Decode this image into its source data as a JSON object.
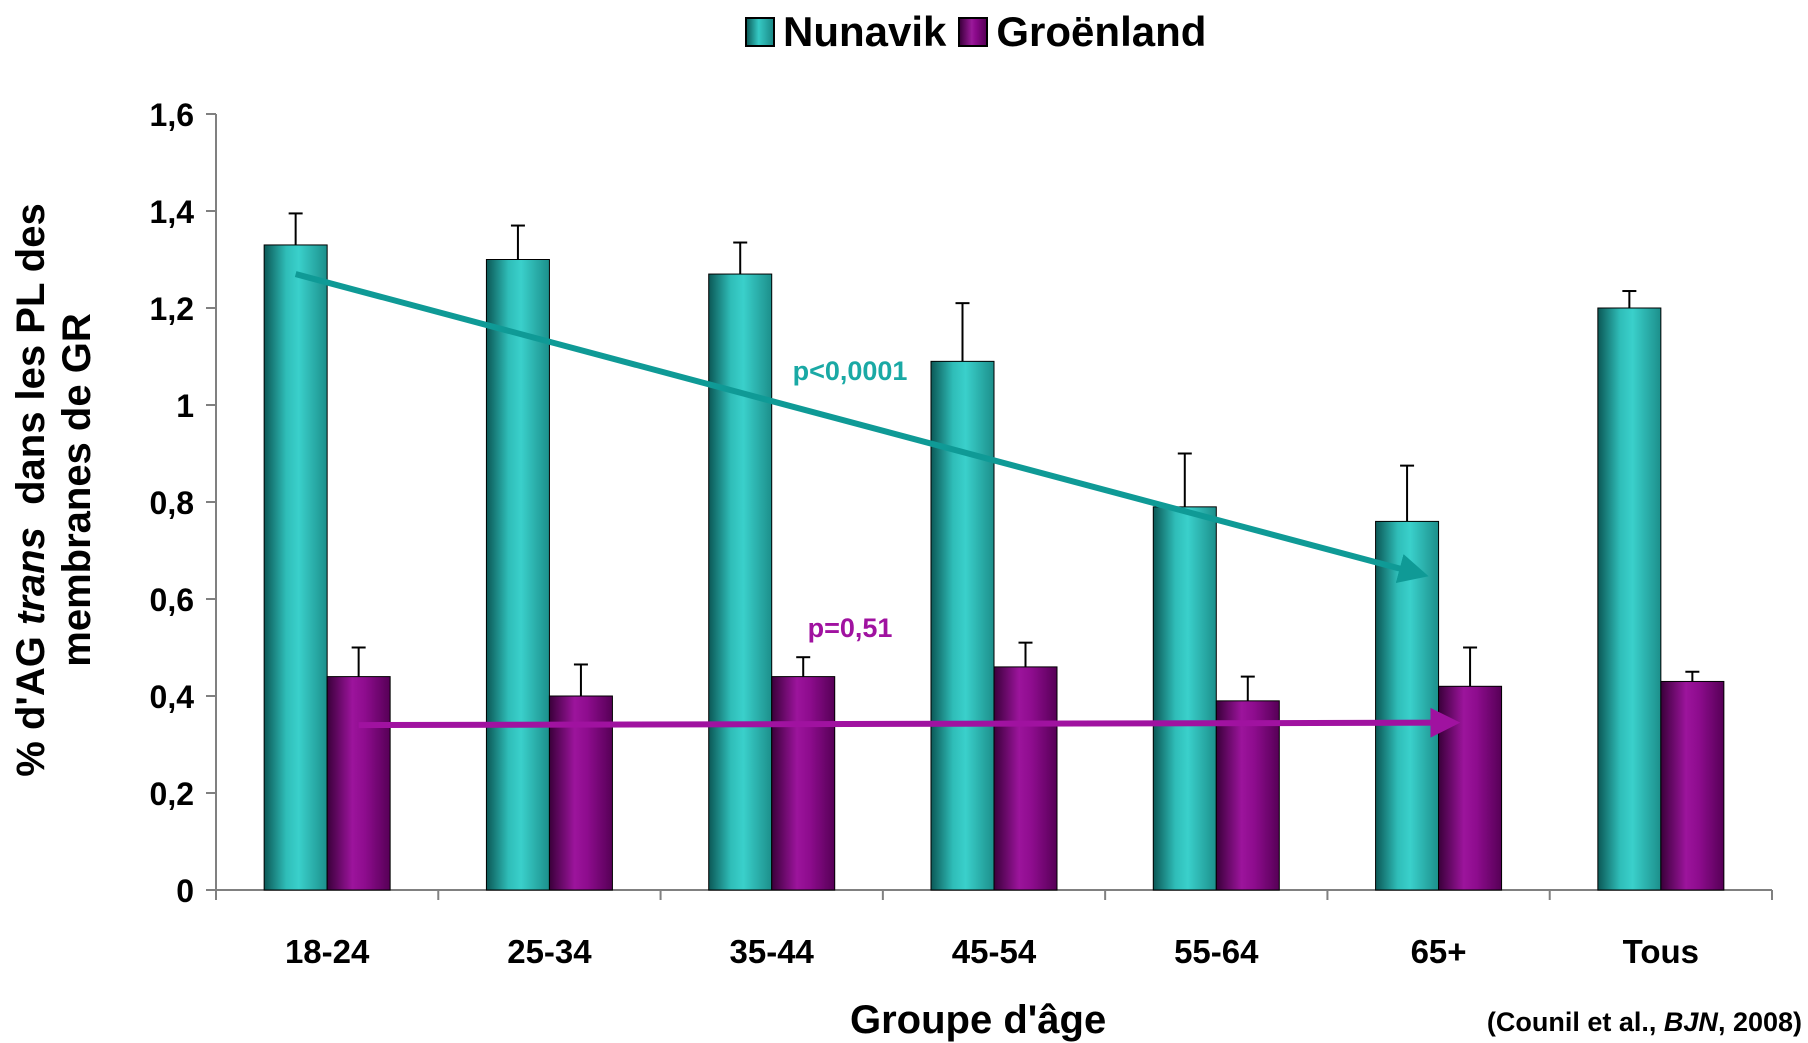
{
  "chart_data": {
    "type": "bar",
    "categories": [
      "18-24",
      "25-34",
      "35-44",
      "45-54",
      "55-64",
      "65+",
      "Tous"
    ],
    "series": [
      {
        "name": "Nunavik",
        "values": [
          1.33,
          1.3,
          1.27,
          1.09,
          0.79,
          0.76,
          1.2
        ],
        "error": [
          0.065,
          0.07,
          0.065,
          0.12,
          0.11,
          0.115,
          0.035
        ],
        "color": "#2fb8b4"
      },
      {
        "name": "Groënland",
        "values": [
          0.44,
          0.4,
          0.44,
          0.46,
          0.39,
          0.42,
          0.43
        ],
        "error": [
          0.06,
          0.065,
          0.04,
          0.05,
          0.05,
          0.08,
          0.02
        ],
        "color": "#8b0a8b"
      }
    ],
    "ylim": [
      0,
      1.6
    ],
    "yticks": [
      "0",
      "0,2",
      "0,4",
      "0,6",
      "0,8",
      "1",
      "1,2",
      "1,4",
      "1,6"
    ],
    "ylabel_line1_pre": "% d'AG ",
    "ylabel_italic": "trans",
    "ylabel_line1_post": "  dans les PL des",
    "ylabel_line2": "membranes de GR",
    "xlabel": "Groupe d'âge",
    "legend_position": "top-center",
    "annotations": {
      "nunavik_p": "p<0,0001",
      "greenland_p": "p=0,51"
    },
    "trend_arrows": [
      {
        "series": "Nunavik",
        "from": {
          "category": "18-24",
          "y": 1.27
        },
        "to": {
          "category": "65+",
          "y": 0.65
        },
        "color": "#0f9a96"
      },
      {
        "series": "Groënland",
        "from": {
          "category": "18-24",
          "y": 0.34
        },
        "to": {
          "category": "65+",
          "y": 0.345
        },
        "color": "#a012a0"
      }
    ],
    "source": {
      "pre": "(Counil et al., ",
      "italic": "BJN",
      "post": ", 2008)"
    }
  }
}
